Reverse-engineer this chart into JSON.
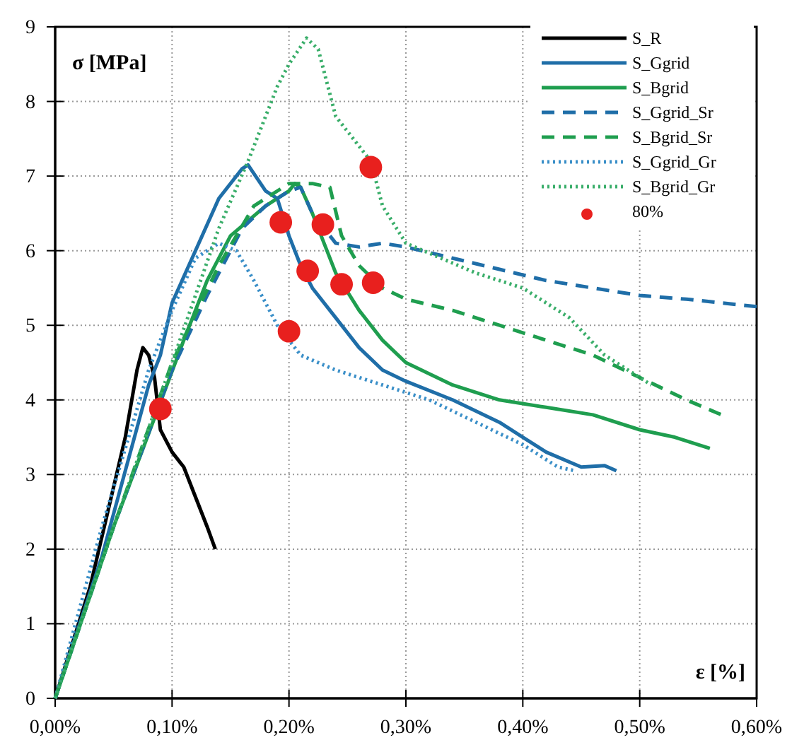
{
  "chart_data": {
    "type": "line",
    "xlabel": "ε [%]",
    "ylabel": "σ [MPa]",
    "xlim": [
      0,
      0.6
    ],
    "xticks": [
      {
        "value": 0,
        "label": "0,00%"
      },
      {
        "value": 0.1,
        "label": "0,10%"
      },
      {
        "value": 0.2,
        "label": "0,20%"
      },
      {
        "value": 0.3,
        "label": "0,30%"
      },
      {
        "value": 0.4,
        "label": "0,40%"
      },
      {
        "value": 0.5,
        "label": "0,50%"
      },
      {
        "value": 0.6,
        "label": "0,60%"
      }
    ],
    "ylim": [
      0,
      9
    ],
    "yticks": [
      0,
      1,
      2,
      3,
      4,
      5,
      6,
      7,
      8,
      9
    ],
    "grid": true,
    "legend": "top right",
    "series": [
      {
        "name": "S_R",
        "color": "#000000",
        "line_style": "solid",
        "x": [
          0,
          0.03,
          0.06,
          0.07,
          0.075,
          0.08,
          0.085,
          0.09,
          0.1,
          0.11,
          0.12,
          0.13,
          0.137
        ],
        "values": [
          0,
          1.5,
          3.5,
          4.4,
          4.7,
          4.6,
          4.3,
          3.6,
          3.3,
          3.1,
          2.7,
          2.3,
          2.0
        ]
      },
      {
        "name": "S_Ggrid",
        "color": "#1f6ea8",
        "line_style": "solid",
        "x": [
          0,
          0.04,
          0.08,
          0.09,
          0.1,
          0.12,
          0.14,
          0.16,
          0.165,
          0.18,
          0.19,
          0.2,
          0.21,
          0.22,
          0.24,
          0.26,
          0.28,
          0.3,
          0.34,
          0.38,
          0.4,
          0.42,
          0.45,
          0.47,
          0.48
        ],
        "values": [
          0,
          1.9,
          4.2,
          4.6,
          5.3,
          6.0,
          6.7,
          7.1,
          7.15,
          6.8,
          6.7,
          6.2,
          5.8,
          5.5,
          5.1,
          4.7,
          4.4,
          4.25,
          4.0,
          3.7,
          3.5,
          3.3,
          3.1,
          3.12,
          3.05
        ]
      },
      {
        "name": "S_Bgrid",
        "color": "#1f9e4f",
        "line_style": "solid",
        "x": [
          0,
          0.05,
          0.11,
          0.13,
          0.15,
          0.18,
          0.2,
          0.205,
          0.21,
          0.22,
          0.23,
          0.24,
          0.26,
          0.28,
          0.3,
          0.34,
          0.38,
          0.42,
          0.46,
          0.5,
          0.53,
          0.56
        ],
        "values": [
          0,
          2.3,
          4.8,
          5.6,
          6.2,
          6.6,
          6.8,
          6.9,
          6.85,
          6.5,
          6.1,
          5.7,
          5.2,
          4.8,
          4.5,
          4.2,
          4.0,
          3.9,
          3.8,
          3.6,
          3.5,
          3.35
        ]
      },
      {
        "name": "S_Ggrid_Sr",
        "color": "#1f6ea8",
        "line_style": "dashed",
        "x": [
          0,
          0.05,
          0.1,
          0.13,
          0.16,
          0.18,
          0.2,
          0.21,
          0.22,
          0.24,
          0.26,
          0.28,
          0.3,
          0.34,
          0.38,
          0.42,
          0.46,
          0.5,
          0.54,
          0.6
        ],
        "values": [
          0,
          2.3,
          4.4,
          5.4,
          6.3,
          6.6,
          6.8,
          6.85,
          6.5,
          6.1,
          6.05,
          6.1,
          6.05,
          5.9,
          5.75,
          5.6,
          5.5,
          5.4,
          5.35,
          5.25
        ]
      },
      {
        "name": "S_Bgrid_Sr",
        "color": "#1f9e4f",
        "line_style": "dashed",
        "x": [
          0,
          0.05,
          0.1,
          0.14,
          0.17,
          0.2,
          0.22,
          0.235,
          0.245,
          0.26,
          0.28,
          0.3,
          0.34,
          0.38,
          0.42,
          0.46,
          0.5,
          0.54,
          0.57
        ],
        "values": [
          0,
          2.3,
          4.5,
          5.8,
          6.6,
          6.9,
          6.9,
          6.85,
          6.2,
          5.8,
          5.5,
          5.35,
          5.2,
          5.0,
          4.8,
          4.6,
          4.3,
          4.0,
          3.8
        ]
      },
      {
        "name": "S_Ggrid_Gr",
        "color": "#3a8fc8",
        "line_style": "dotted",
        "x": [
          0,
          0.04,
          0.08,
          0.1,
          0.12,
          0.14,
          0.155,
          0.17,
          0.19,
          0.21,
          0.24,
          0.28,
          0.32,
          0.36,
          0.4,
          0.43,
          0.445
        ],
        "values": [
          0,
          2.3,
          4.4,
          5.2,
          5.9,
          6.1,
          6.0,
          5.6,
          5.0,
          4.6,
          4.4,
          4.2,
          4.0,
          3.7,
          3.4,
          3.1,
          3.05
        ]
      },
      {
        "name": "S_Bgrid_Gr",
        "color": "#3aae6a",
        "line_style": "dotted",
        "x": [
          0,
          0.05,
          0.1,
          0.14,
          0.165,
          0.19,
          0.2,
          0.215,
          0.225,
          0.24,
          0.26,
          0.27,
          0.28,
          0.3,
          0.33,
          0.36,
          0.4,
          0.44,
          0.47,
          0.5,
          0.51
        ],
        "values": [
          0,
          2.3,
          4.5,
          6.3,
          7.2,
          8.2,
          8.5,
          8.85,
          8.7,
          7.8,
          7.4,
          7.2,
          6.6,
          6.1,
          5.9,
          5.7,
          5.5,
          5.1,
          4.6,
          4.3,
          4.2
        ]
      },
      {
        "name": "80%",
        "type": "scatter",
        "marker": "circle",
        "color": "#e8201e",
        "x": [
          0.09,
          0.193,
          0.2,
          0.216,
          0.229,
          0.245,
          0.27,
          0.272
        ],
        "values": [
          3.88,
          6.38,
          4.92,
          5.73,
          6.35,
          5.55,
          7.12,
          5.57
        ]
      }
    ]
  }
}
